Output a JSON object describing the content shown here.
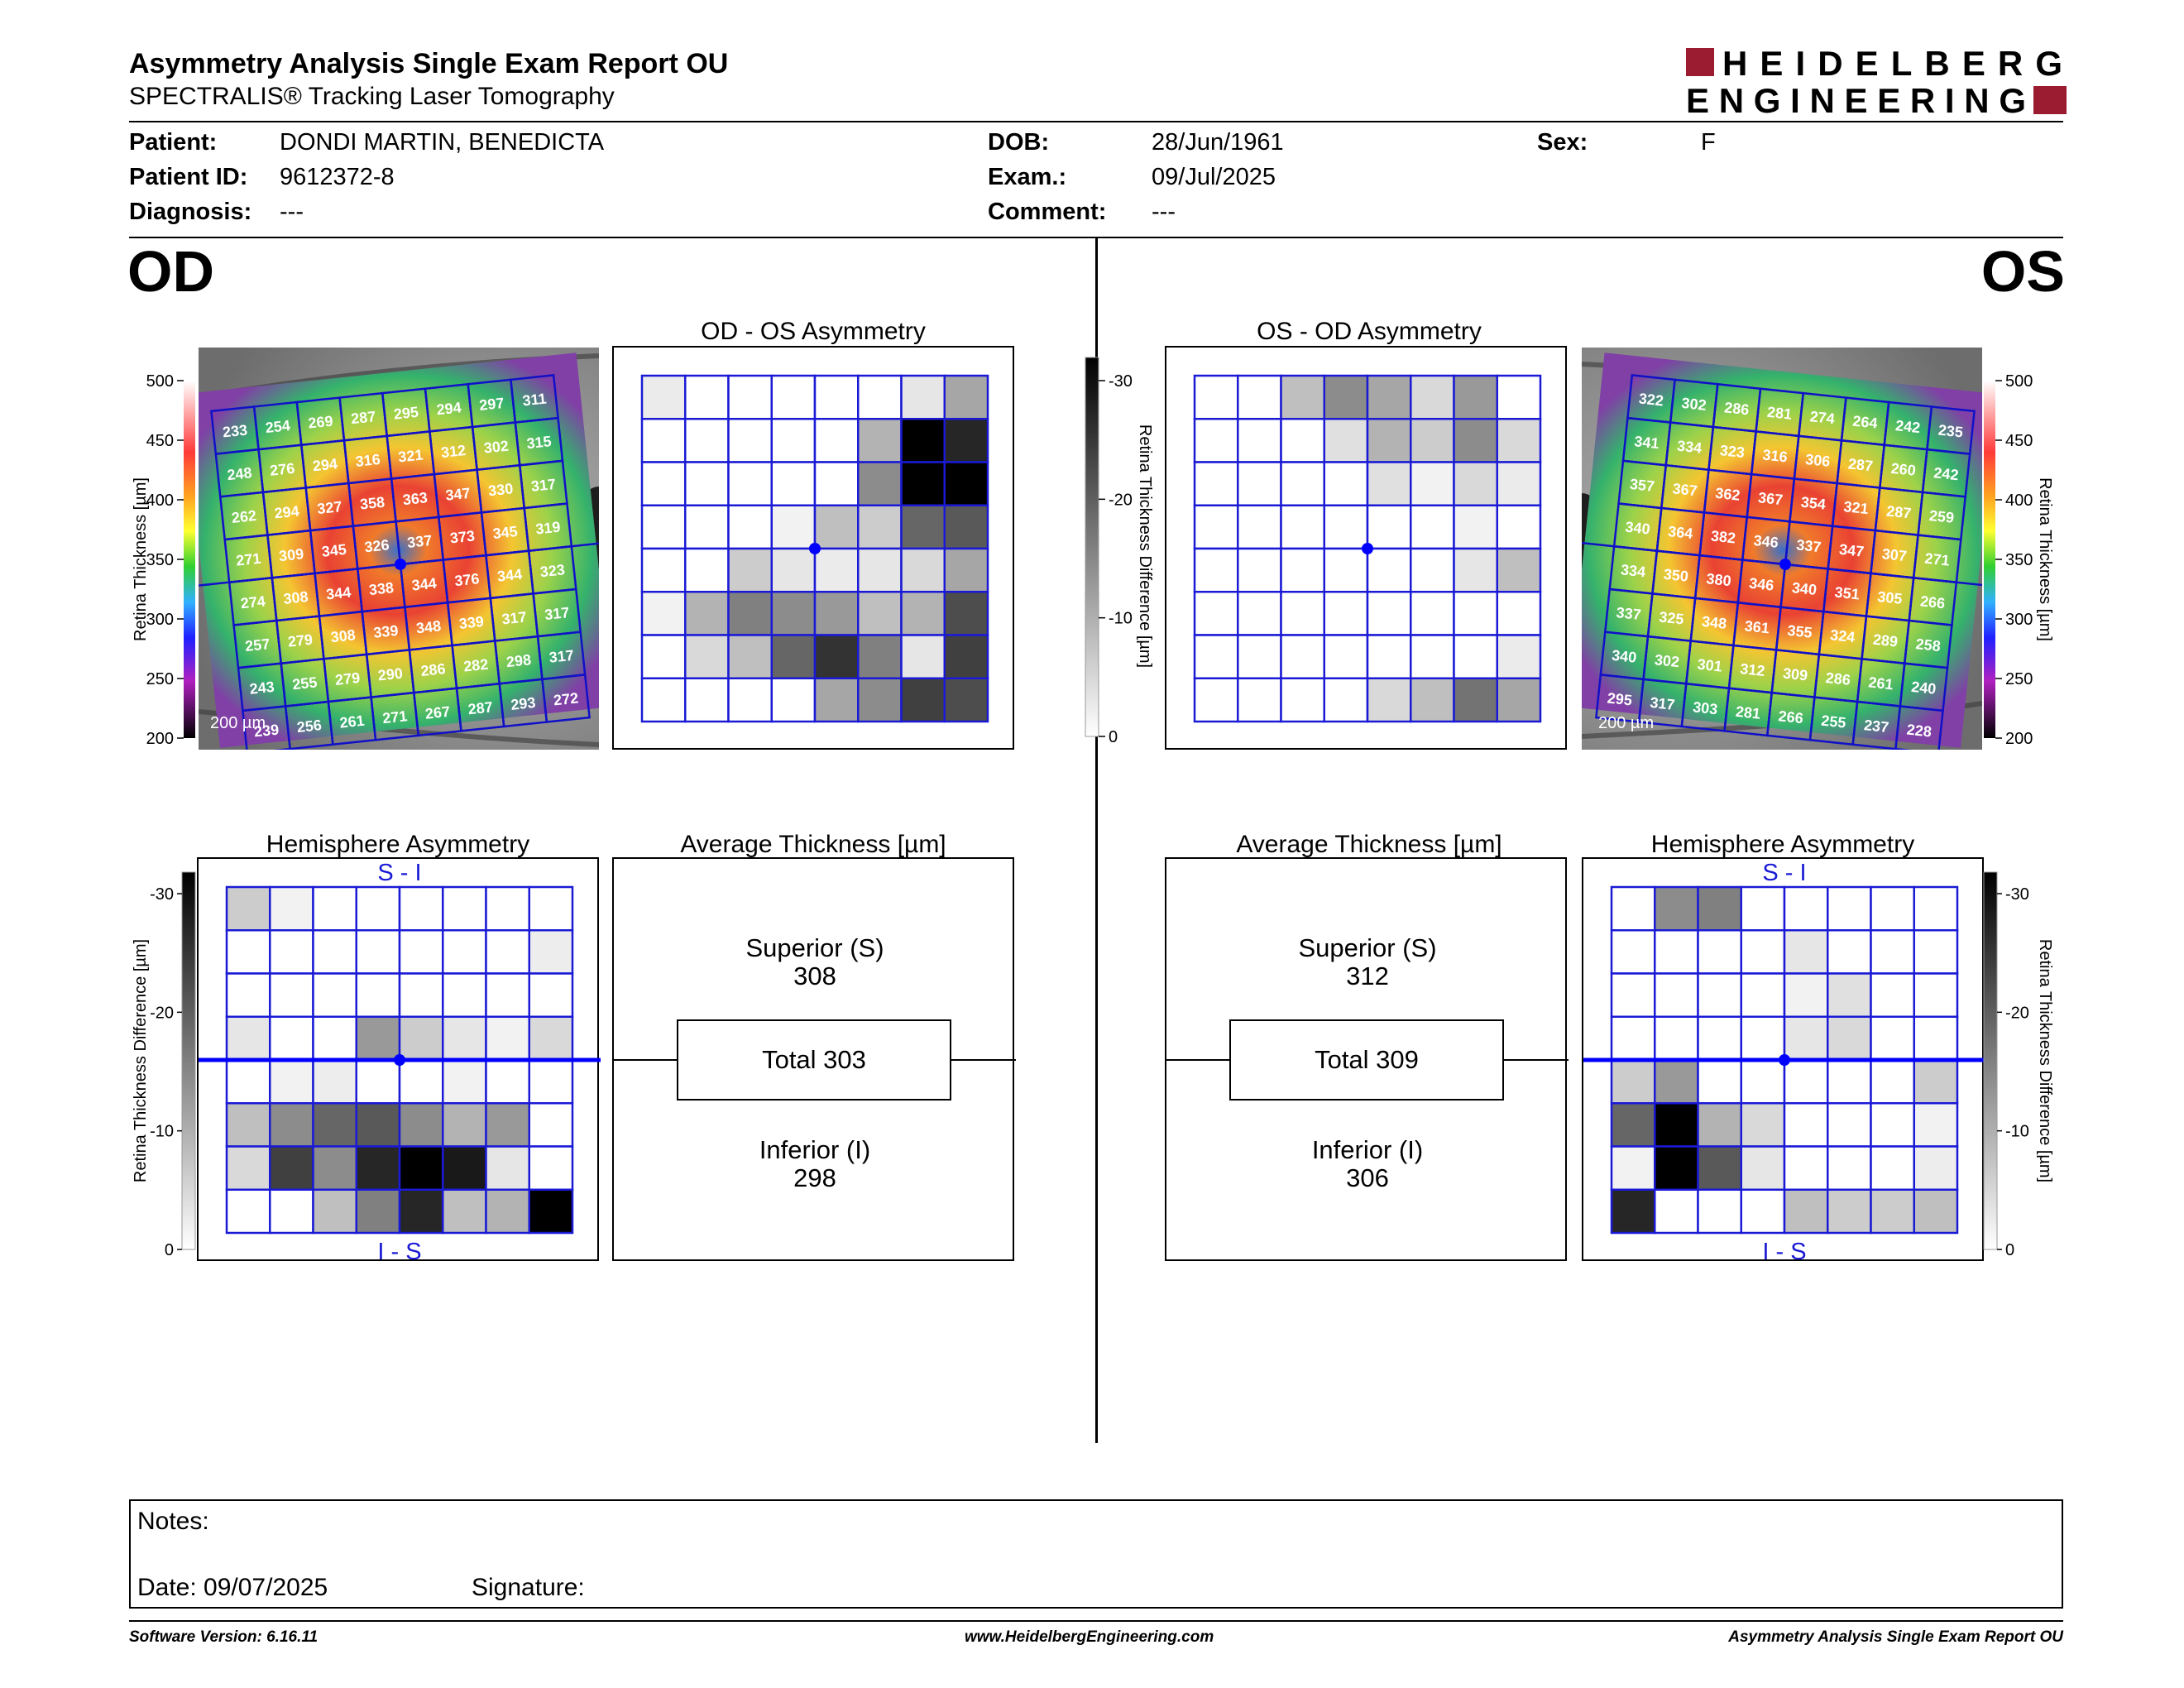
{
  "header": {
    "title": "Asymmetry Analysis Single Exam Report OU",
    "subtitle": "SPECTRALIS® Tracking Laser Tomography",
    "logo_line1": "HEIDELBERG",
    "logo_line2": "ENGINEERING",
    "brand_color": "#9b1b30"
  },
  "patient": {
    "patient_label": "Patient:",
    "patient_value": "DONDI MARTIN, BENEDICTA",
    "id_label": "Patient ID:",
    "id_value": "9612372-8",
    "diagnosis_label": "Diagnosis:",
    "diagnosis_value": "---",
    "dob_label": "DOB:",
    "dob_value": "28/Jun/1961",
    "exam_label": "Exam.:",
    "exam_value": "09/Jul/2025",
    "comment_label": "Comment:",
    "comment_value": "---",
    "sex_label": "Sex:",
    "sex_value": "F"
  },
  "od": {
    "eye": "OD",
    "scale_bar": "200 µm",
    "thickness_axis_label": "Retina Thickness [µm]",
    "thickness_ticks": [
      "500",
      "450",
      "400",
      "350",
      "300",
      "250",
      "200"
    ],
    "thickness_grid": [
      [
        233,
        254,
        269,
        287,
        295,
        294,
        297,
        311
      ],
      [
        248,
        276,
        294,
        316,
        321,
        312,
        302,
        315
      ],
      [
        262,
        294,
        327,
        358,
        363,
        347,
        330,
        317
      ],
      [
        271,
        309,
        345,
        326,
        337,
        373,
        345,
        319
      ],
      [
        274,
        308,
        344,
        338,
        344,
        376,
        344,
        323
      ],
      [
        257,
        279,
        308,
        339,
        348,
        339,
        317,
        317
      ],
      [
        243,
        255,
        279,
        290,
        286,
        282,
        298,
        317
      ],
      [
        239,
        256,
        261,
        271,
        267,
        287,
        293,
        272
      ]
    ],
    "asym_title": "OD - OS Asymmetry",
    "asym_grid": [
      [
        0.08,
        0,
        0,
        0,
        0,
        0,
        0.1,
        0.35
      ],
      [
        0,
        0,
        0,
        0,
        0,
        0.3,
        1,
        0.85
      ],
      [
        0,
        0,
        0,
        0,
        0,
        0.45,
        1,
        1
      ],
      [
        0,
        0,
        0,
        0.05,
        0.25,
        0.2,
        0.6,
        0.65
      ],
      [
        0,
        0,
        0.2,
        0.1,
        0.08,
        0.1,
        0.15,
        0.35
      ],
      [
        0.05,
        0.3,
        0.5,
        0.45,
        0.4,
        0.25,
        0.3,
        0.7
      ],
      [
        0,
        0.15,
        0.25,
        0.6,
        0.8,
        0.5,
        0.1,
        0.75
      ],
      [
        0,
        0,
        0,
        0,
        0.35,
        0.45,
        0.75,
        0.7
      ]
    ],
    "hemi_title": "Hemisphere Asymmetry",
    "hemi_top_label": "S - I",
    "hemi_bottom_label": "I - S",
    "hemi_grid": [
      [
        0.2,
        0.05,
        0,
        0,
        0,
        0,
        0,
        0
      ],
      [
        0,
        0,
        0,
        0,
        0,
        0,
        0,
        0.07
      ],
      [
        0,
        0,
        0,
        0,
        0,
        0,
        0,
        0
      ],
      [
        0.1,
        0,
        0,
        0.4,
        0.2,
        0.1,
        0.05,
        0.15
      ],
      [
        0,
        0.05,
        0.07,
        0,
        0,
        0.05,
        0,
        0
      ],
      [
        0.25,
        0.45,
        0.6,
        0.65,
        0.45,
        0.3,
        0.4,
        0
      ],
      [
        0.15,
        0.75,
        0.45,
        0.85,
        1,
        0.9,
        0.1,
        0
      ],
      [
        0,
        0,
        0.25,
        0.5,
        0.85,
        0.25,
        0.3,
        1
      ]
    ],
    "avg_title": "Average Thickness [µm]",
    "superior_label": "Superior (S)",
    "superior_value": "308",
    "total_text": "Total 303",
    "inferior_label": "Inferior (I)",
    "inferior_value": "298"
  },
  "os": {
    "eye": "OS",
    "scale_bar": "200 µm",
    "thickness_axis_label": "Retina Thickness [µm]",
    "thickness_ticks": [
      "500",
      "450",
      "400",
      "350",
      "300",
      "250",
      "200"
    ],
    "thickness_grid": [
      [
        322,
        302,
        286,
        281,
        274,
        264,
        242,
        235
      ],
      [
        341,
        334,
        323,
        316,
        306,
        287,
        260,
        242
      ],
      [
        357,
        367,
        362,
        367,
        354,
        321,
        287,
        259
      ],
      [
        340,
        364,
        382,
        346,
        337,
        347,
        307,
        271
      ],
      [
        334,
        350,
        380,
        346,
        340,
        351,
        305,
        266
      ],
      [
        337,
        325,
        348,
        361,
        355,
        324,
        289,
        258
      ],
      [
        340,
        302,
        301,
        312,
        309,
        286,
        261,
        240
      ],
      [
        295,
        317,
        303,
        281,
        266,
        255,
        237,
        228
      ]
    ],
    "asym_title": "OS - OD Asymmetry",
    "asym_grid": [
      [
        0,
        0,
        0.25,
        0.45,
        0.35,
        0.15,
        0.4,
        0
      ],
      [
        0,
        0,
        0,
        0.12,
        0.3,
        0.2,
        0.45,
        0.15
      ],
      [
        0,
        0,
        0,
        0,
        0.12,
        0.05,
        0.15,
        0.08
      ],
      [
        0,
        0,
        0,
        0,
        0,
        0,
        0.05,
        0
      ],
      [
        0,
        0,
        0,
        0,
        0,
        0,
        0.1,
        0.25
      ],
      [
        0,
        0,
        0,
        0,
        0,
        0,
        0,
        0
      ],
      [
        0,
        0,
        0,
        0,
        0,
        0,
        0,
        0.08
      ],
      [
        0,
        0,
        0,
        0,
        0.15,
        0.25,
        0.55,
        0.35
      ]
    ],
    "hemi_title": "Hemisphere Asymmetry",
    "hemi_top_label": "S - I",
    "hemi_bottom_label": "I - S",
    "hemi_grid": [
      [
        0,
        0.45,
        0.5,
        0,
        0,
        0,
        0,
        0
      ],
      [
        0,
        0,
        0,
        0,
        0.1,
        0,
        0,
        0
      ],
      [
        0,
        0,
        0,
        0,
        0.05,
        0.12,
        0,
        0
      ],
      [
        0,
        0,
        0,
        0,
        0.1,
        0.15,
        0,
        0
      ],
      [
        0.2,
        0.4,
        0,
        0,
        0,
        0,
        0,
        0.2
      ],
      [
        0.6,
        1,
        0.3,
        0.15,
        0,
        0,
        0,
        0.05
      ],
      [
        0.05,
        1,
        0.65,
        0.1,
        0,
        0,
        0,
        0.07
      ],
      [
        0.85,
        0,
        0,
        0,
        0.25,
        0.2,
        0.2,
        0.25
      ]
    ],
    "avg_title": "Average Thickness [µm]",
    "superior_label": "Superior (S)",
    "superior_value": "312",
    "total_text": "Total 309",
    "inferior_label": "Inferior (I)",
    "inferior_value": "306"
  },
  "diff_scale": {
    "label": "Retina Thickness Difference [µm]",
    "ticks": [
      "-30",
      "-20",
      "-10",
      "0"
    ]
  },
  "notes": {
    "notes_label": "Notes:",
    "date_label": "Date: 09/07/2025",
    "signature_label": "Signature:"
  },
  "footer": {
    "software": "Software Version: 6.16.11",
    "website": "www.HeidelbergEngineering.com",
    "report_name": "Asymmetry Analysis Single Exam Report OU"
  },
  "colors": {
    "grid_blue": "#1a1ad6",
    "fovea_blue": "#0000ff"
  }
}
